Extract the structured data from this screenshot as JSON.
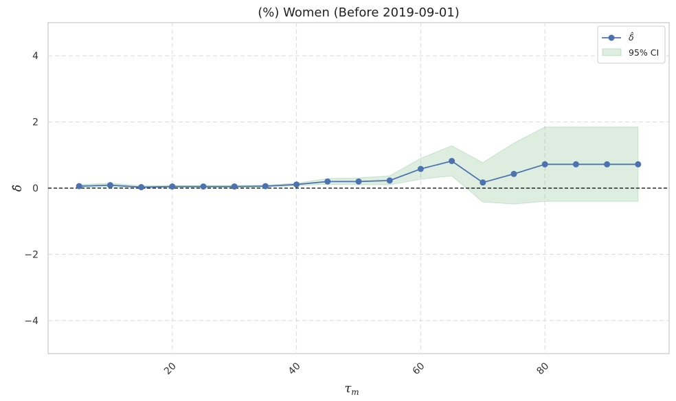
{
  "chart_data": {
    "type": "line",
    "title": "(%) Women (Before 2019-09-01)",
    "xlabel": "τ",
    "xlabel_sub": "m",
    "ylabel": "δ̂",
    "xlim": [
      0,
      100
    ],
    "ylim": [
      -5,
      5
    ],
    "xticks": [
      20,
      40,
      60,
      80
    ],
    "yticks": [
      4,
      2,
      0,
      -2,
      -4
    ],
    "ytick_labels": [
      "4",
      "2",
      "0",
      "−2",
      "−4"
    ],
    "reference_line_y": 0,
    "grid": true,
    "legend_position": "top-right",
    "series": [
      {
        "name": "δ̂",
        "kind": "line-marker",
        "color": "#4c72b0",
        "x": [
          5,
          10,
          15,
          20,
          25,
          30,
          35,
          40,
          45,
          50,
          55,
          60,
          65,
          70,
          75,
          80,
          85,
          90,
          95
        ],
        "y": [
          0.06,
          0.09,
          0.03,
          0.05,
          0.05,
          0.05,
          0.06,
          0.11,
          0.2,
          0.2,
          0.23,
          0.58,
          0.82,
          0.17,
          0.43,
          0.72,
          0.72,
          0.72,
          0.72
        ]
      },
      {
        "name": "95% CI",
        "kind": "band",
        "color": "#55a868",
        "x": [
          5,
          10,
          15,
          20,
          25,
          30,
          35,
          40,
          45,
          50,
          55,
          60,
          65,
          70,
          75,
          80,
          85,
          90,
          95
        ],
        "lower": [
          0.02,
          0.04,
          -0.01,
          0.02,
          0.02,
          0.02,
          0.03,
          0.07,
          0.12,
          0.1,
          0.1,
          0.27,
          0.37,
          -0.42,
          -0.48,
          -0.4,
          -0.4,
          -0.4,
          -0.4
        ],
        "upper": [
          0.11,
          0.15,
          0.07,
          0.08,
          0.08,
          0.08,
          0.09,
          0.15,
          0.29,
          0.31,
          0.37,
          0.9,
          1.28,
          0.77,
          1.36,
          1.85,
          1.85,
          1.85,
          1.85
        ]
      }
    ],
    "legend": [
      {
        "label": "δ̂",
        "series": "δ̂"
      },
      {
        "label": "95% CI",
        "series": "95% CI"
      }
    ]
  }
}
